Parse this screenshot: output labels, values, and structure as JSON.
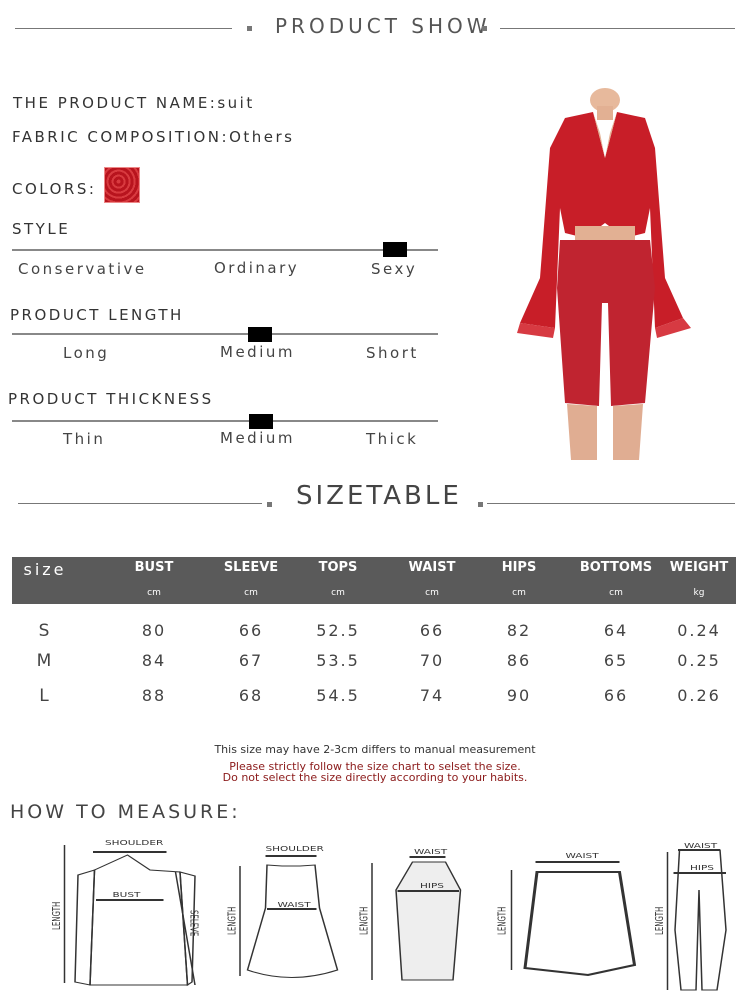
{
  "header": {
    "title": "PRODUCT SHOW"
  },
  "product": {
    "name_label": "THE PRODUCT NAME:suit",
    "fabric_label": "FABRIC COMPOSITION:Others",
    "colors_label": "COLORS:",
    "swatch_color": "#c8202a"
  },
  "style": {
    "title": "STYLE",
    "options": [
      "Conservative",
      "Ordinary",
      "Sexy"
    ],
    "selected": "Sexy"
  },
  "length": {
    "title": "PRODUCT LENGTH",
    "options": [
      "Long",
      "Medium",
      "Short"
    ],
    "selected": "Medium"
  },
  "thickness": {
    "title": "PRODUCT THICKNESS",
    "options": [
      "Thin",
      "Medium",
      "Thick"
    ],
    "selected": "Medium"
  },
  "sizetable": {
    "title": "SIZETABLE",
    "columns": [
      {
        "name": "size",
        "unit": ""
      },
      {
        "name": "BUST",
        "unit": "cm"
      },
      {
        "name": "SLEEVE",
        "unit": "cm"
      },
      {
        "name": "TOPS",
        "unit": "cm"
      },
      {
        "name": "WAIST",
        "unit": "cm"
      },
      {
        "name": "HIPS",
        "unit": "cm"
      },
      {
        "name": "BOTTOMS",
        "unit": "cm"
      },
      {
        "name": "WEIGHT",
        "unit": "kg"
      }
    ],
    "rows": [
      [
        "S",
        "80",
        "66",
        "52.5",
        "66",
        "82",
        "64",
        "0.24"
      ],
      [
        "M",
        "84",
        "67",
        "53.5",
        "70",
        "86",
        "65",
        "0.25"
      ],
      [
        "L",
        "88",
        "68",
        "54.5",
        "74",
        "90",
        "66",
        "0.26"
      ]
    ],
    "notes": [
      "This size may have 2-3cm differs to manual measurement",
      "Please strictly follow the size chart to selset the size.",
      "Do not select the size directly according to your habits."
    ]
  },
  "measure": {
    "title": "HOW TO MEASURE:",
    "labels": {
      "shoulder": "SHOULDER",
      "bust": "BUST",
      "length": "LENGTH",
      "sleeve": "SELEVE",
      "waist": "WAIST",
      "hips": "HIPS"
    }
  }
}
